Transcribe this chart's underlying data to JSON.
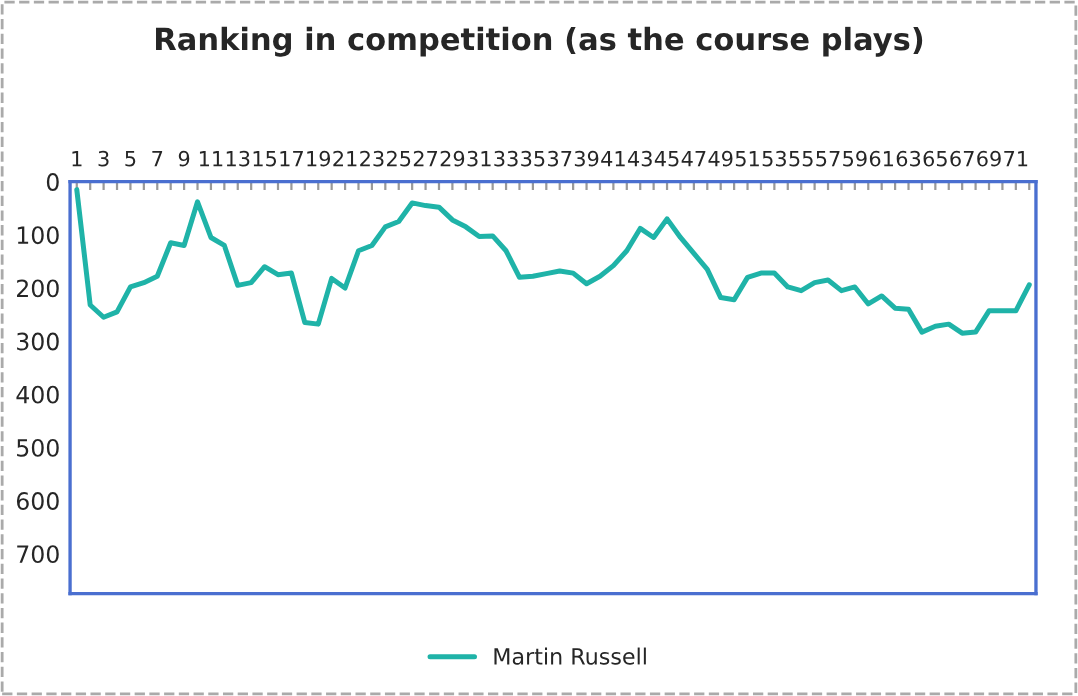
{
  "chart_data": {
    "type": "line",
    "title": "Ranking in competition (as the course plays)",
    "categories": [
      "1",
      null,
      "3",
      null,
      "5",
      null,
      "7",
      null,
      "9",
      null,
      "11",
      null,
      "13",
      null,
      "15",
      null,
      "17",
      null,
      "19",
      null,
      "21",
      null,
      "23",
      null,
      "25",
      null,
      "27",
      null,
      "29",
      null,
      "31",
      null,
      "33",
      null,
      "35",
      null,
      "37",
      null,
      "39",
      null,
      "41",
      null,
      "43",
      null,
      "45",
      null,
      "47",
      null,
      "49",
      null,
      "51",
      null,
      "53",
      null,
      "55",
      null,
      "57",
      null,
      "59",
      null,
      "61",
      null,
      "63",
      null,
      "65",
      null,
      "67",
      null,
      "69",
      null,
      "71",
      null
    ],
    "series": [
      {
        "name": "Martin Russell",
        "color": "#1fb3a8",
        "values": [
          15,
          232,
          255,
          245,
          198,
          190,
          178,
          115,
          120,
          38,
          105,
          120,
          195,
          190,
          160,
          175,
          172,
          265,
          268,
          182,
          200,
          130,
          120,
          85,
          75,
          40,
          45,
          48,
          72,
          85,
          103,
          102,
          130,
          180,
          178,
          173,
          168,
          172,
          192,
          178,
          158,
          130,
          88,
          105,
          70,
          105,
          135,
          165,
          218,
          222,
          180,
          172,
          172,
          198,
          205,
          190,
          185,
          205,
          198,
          230,
          215,
          238,
          240,
          283,
          272,
          268,
          285,
          283,
          243,
          243,
          243,
          194
        ]
      }
    ],
    "ylim": [
      775,
      0
    ],
    "yticks": [
      0,
      100,
      200,
      300,
      400,
      500,
      600,
      700
    ],
    "legend": "bottom",
    "grid": false
  }
}
